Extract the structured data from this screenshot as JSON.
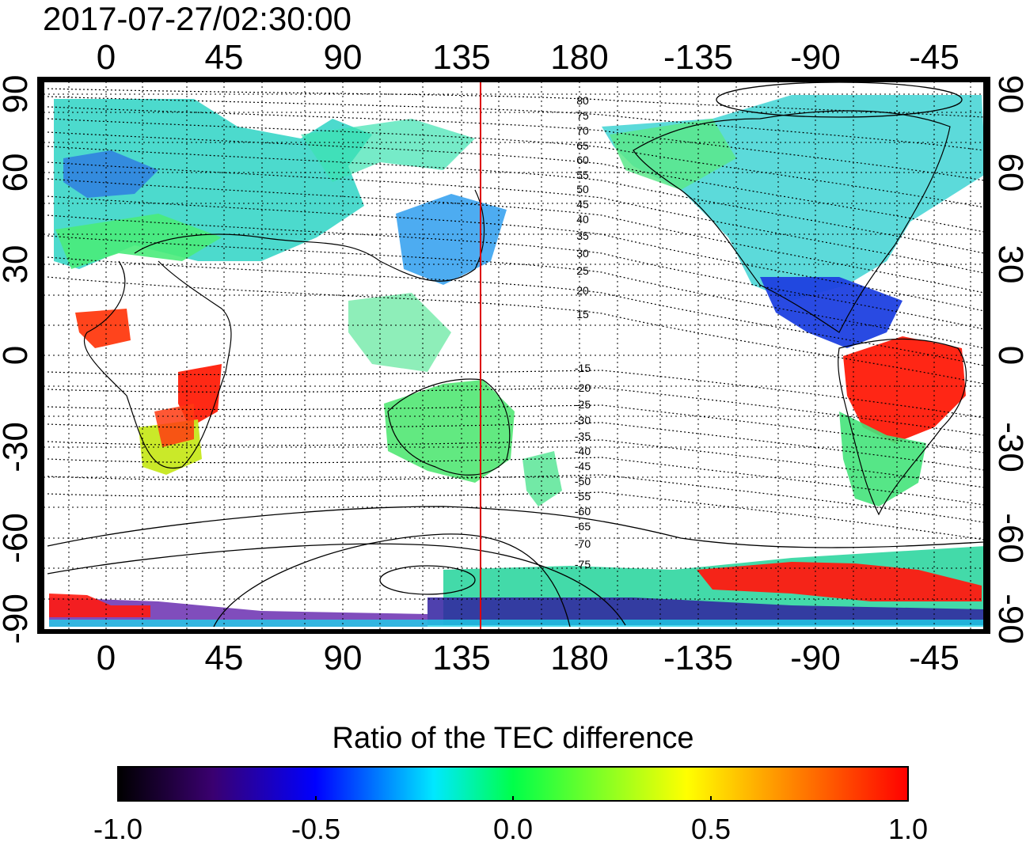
{
  "timestamp": "2017-07-27/02:30:00",
  "top_axis_labels": [
    "0",
    "45",
    "90",
    "135",
    "180",
    "-135",
    "-90",
    "-45"
  ],
  "bottom_axis_labels": [
    "0",
    "45",
    "90",
    "135",
    "180",
    "-135",
    "-90",
    "-45"
  ],
  "left_axis_labels": [
    "90",
    "60",
    "30",
    "0",
    "-30",
    "-60",
    "-90"
  ],
  "right_axis_labels": [
    "90",
    "60",
    "30",
    "0",
    "-30",
    "-60",
    "-90"
  ],
  "contour_labels_north": [
    "80",
    "75",
    "70",
    "65",
    "60",
    "55",
    "50",
    "45",
    "40",
    "35",
    "30",
    "25",
    "20",
    "15"
  ],
  "contour_labels_south": [
    "-15",
    "-20",
    "-25",
    "-30",
    "-35",
    "-40",
    "-45",
    "-50",
    "-55",
    "-60",
    "-65",
    "-70",
    "-75"
  ],
  "colorbar": {
    "title": "Ratio of the TEC difference",
    "ticks": [
      "-1.0",
      "-0.5",
      "0.0",
      "0.5",
      "1.0"
    ],
    "min": -1.0,
    "max": 1.0,
    "colors": [
      "#000000",
      "#3a0070",
      "#0000ff",
      "#00e8ff",
      "#00ff4a",
      "#ffff00",
      "#ff8800",
      "#ff0000"
    ]
  },
  "meridian_line": {
    "longitude": 142,
    "color": "#dd0000"
  }
}
